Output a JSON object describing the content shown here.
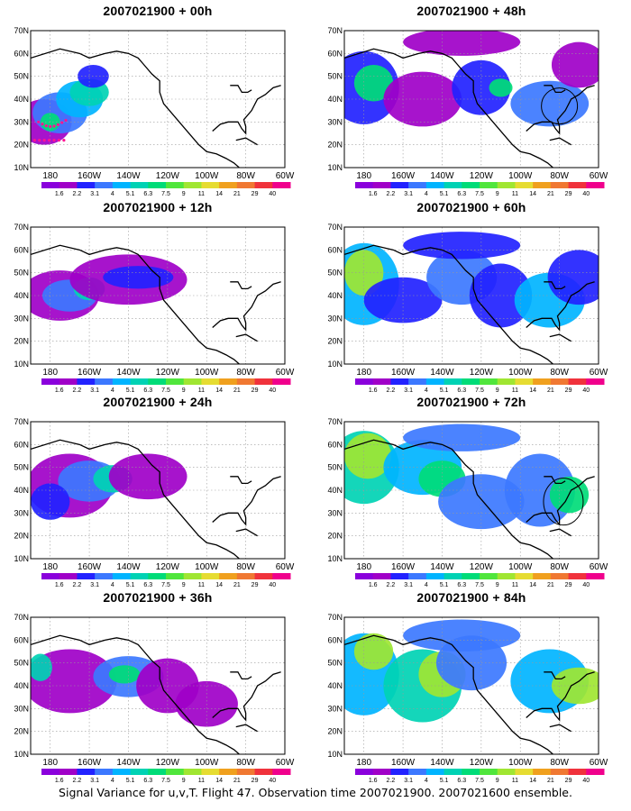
{
  "caption": "Signal Variance for u,v,T. Flight 47. Observation time 2007021900. 2007021600 ensemble.",
  "panel_titles": [
    "2007021900 + 00h",
    "2007021900 + 12h",
    "2007021900 + 24h",
    "2007021900 + 36h",
    "2007021900 + 48h",
    "2007021900 + 60h",
    "2007021900 + 72h",
    "2007021900 + 84h"
  ],
  "lat_labels": [
    "70N",
    "60N",
    "50N",
    "40N",
    "30N",
    "20N",
    "10N"
  ],
  "lon_labels": [
    "180",
    "160W",
    "140W",
    "120W",
    "100W",
    "80W",
    "60W"
  ],
  "colorbar": {
    "labels": [
      "1.6",
      "2.2",
      "3.1",
      "4",
      "5.1",
      "6.3",
      "7.5",
      "9",
      "11",
      "14",
      "21",
      "29",
      "40"
    ],
    "colors": [
      "#8a00dc",
      "#a000c8",
      "#2222ff",
      "#3c78ff",
      "#00b4ff",
      "#00d2b4",
      "#00dc78",
      "#50e63c",
      "#a0e632",
      "#e6dc32",
      "#f0a01e",
      "#f07832",
      "#f0323c",
      "#f0008c"
    ]
  }
}
